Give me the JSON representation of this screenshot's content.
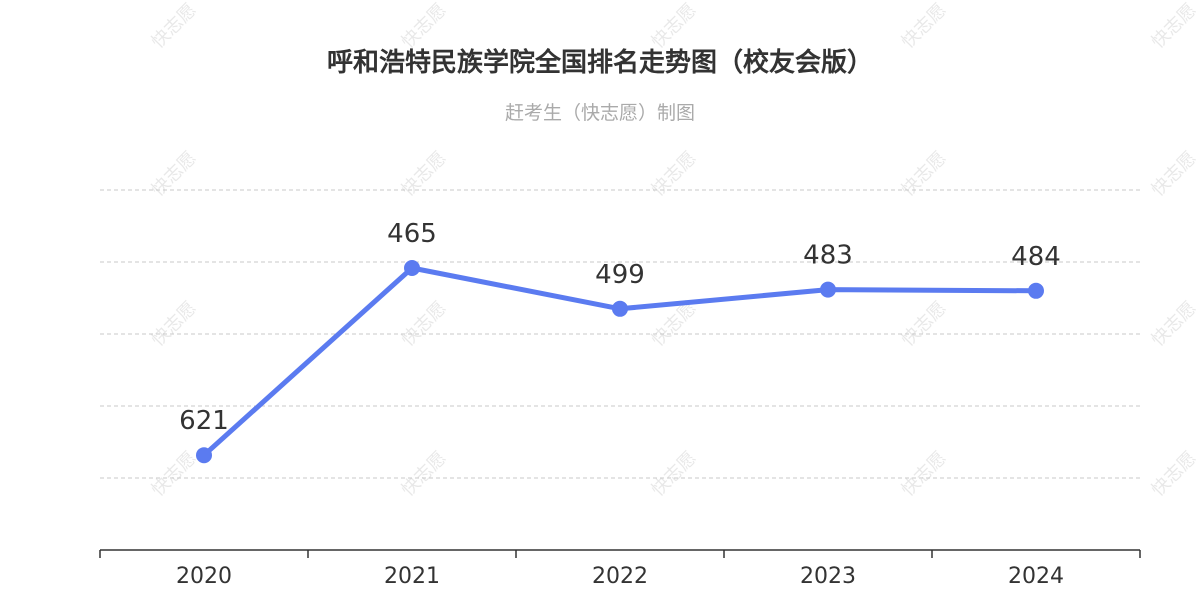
{
  "title": "呼和浩特民族学院全国排名走势图（校友会版）",
  "subtitle": "赶考生（快志愿）制图",
  "watermark": "快志愿",
  "colors": {
    "line": "#5B7BF0",
    "grid": "#c8c8c8",
    "axis": "#333333",
    "title": "#333333",
    "subtitle": "#aaaaaa",
    "label": "#333333"
  },
  "chart_data": {
    "type": "line",
    "categories": [
      "2020",
      "2021",
      "2022",
      "2023",
      "2024"
    ],
    "series": [
      {
        "values": [
          621,
          465,
          499,
          483,
          484
        ]
      }
    ],
    "data_labels": [
      "621",
      "465",
      "499",
      "483",
      "484"
    ],
    "y_axis": {
      "inverted": true,
      "visible_labels": false,
      "range": [
        400,
        700
      ]
    },
    "grid": true,
    "grid_style": "dashed",
    "legend": "none"
  }
}
